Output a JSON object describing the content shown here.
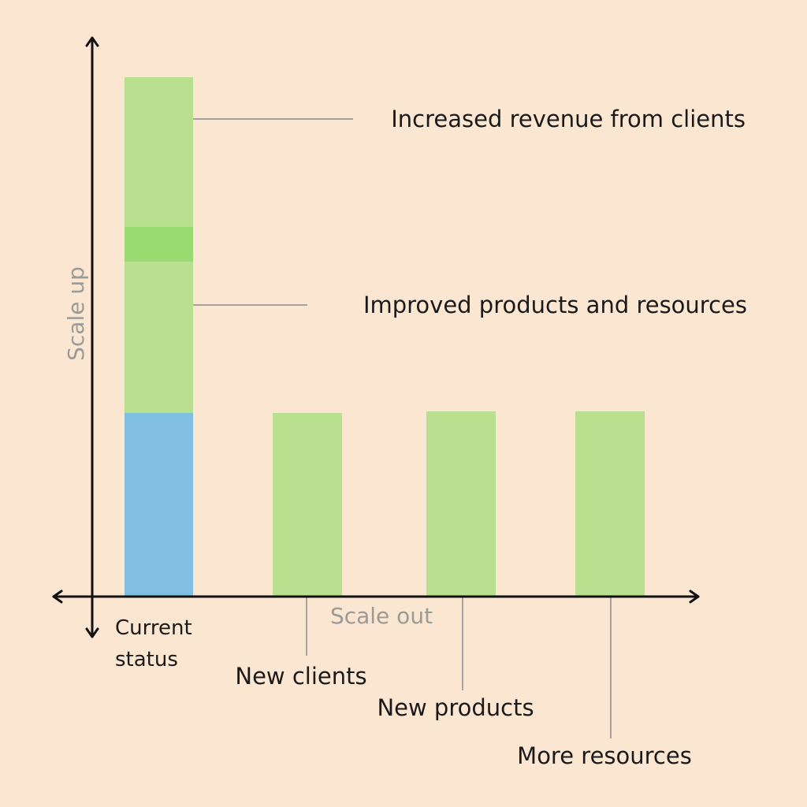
{
  "colors": {
    "background": "#fbe6d2",
    "green": "#b9e08f",
    "green_dark": "#99db70",
    "blue": "#81bfe2",
    "axis": "#111111",
    "leader": "#8a8a8a",
    "axis_label": "#9b9b96"
  },
  "axes": {
    "y_label": "Scale up",
    "x_label": "Scale out"
  },
  "bars": {
    "current_status": {
      "label_line1": "Current",
      "label_line2": "status",
      "segments": [
        {
          "name": "current",
          "color": "#81bfe2"
        },
        {
          "name": "improved-products-and-resources",
          "color": "#b9e08f"
        },
        {
          "name": "overlap",
          "color": "#99db70"
        },
        {
          "name": "increased-revenue",
          "color": "#b9e08f"
        }
      ]
    },
    "new_clients": {
      "label": "New clients"
    },
    "new_products": {
      "label": "New products"
    },
    "more_resources": {
      "label": "More resources"
    }
  },
  "callouts": {
    "increased_revenue": "Increased revenue from clients",
    "improved_products": "Improved products and resources"
  }
}
